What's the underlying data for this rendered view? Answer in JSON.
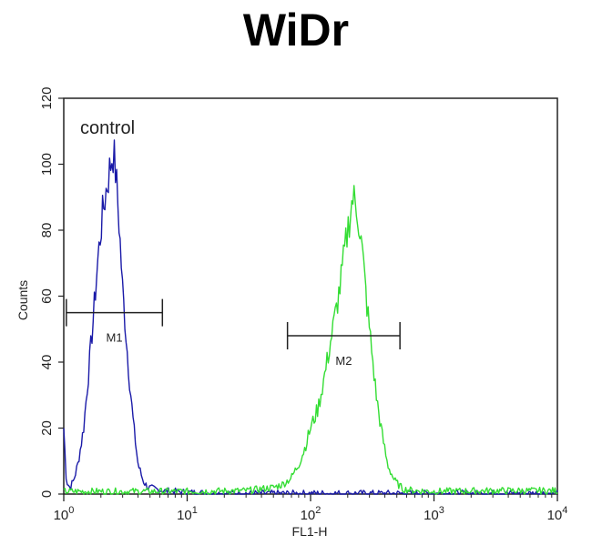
{
  "title": "WiDr",
  "colors": {
    "control": "#1a1aa8",
    "sample": "#33dd33",
    "axis": "#222222"
  },
  "chart_data": {
    "type": "line",
    "title": "WiDr",
    "xlabel": "FL1-H",
    "ylabel": "Counts",
    "xscale": "log",
    "xlim": [
      1,
      10000
    ],
    "ylim": [
      0,
      120
    ],
    "x_ticks": [
      {
        "value": 1,
        "base": "10",
        "exp": "0"
      },
      {
        "value": 10,
        "base": "10",
        "exp": "1"
      },
      {
        "value": 100,
        "base": "10",
        "exp": "2"
      },
      {
        "value": 1000,
        "base": "10",
        "exp": "3"
      },
      {
        "value": 10000,
        "base": "10",
        "exp": "4"
      }
    ],
    "y_ticks": [
      "0",
      "20",
      "40",
      "60",
      "80",
      "100",
      "120"
    ],
    "grid": false,
    "annotation": "control",
    "markers": [
      {
        "label": "M1",
        "x_range": [
          1.05,
          6.3
        ],
        "y": 55
      },
      {
        "label": "M2",
        "x_range": [
          65,
          530
        ],
        "y": 48
      }
    ],
    "series": [
      {
        "key": "control",
        "x": [
          1,
          1.05,
          1.12,
          1.2,
          1.3,
          1.45,
          1.6,
          1.75,
          1.9,
          2.05,
          2.2,
          2.35,
          2.5,
          2.6,
          2.7,
          2.85,
          3.0,
          3.2,
          3.4,
          3.7,
          4.0,
          4.4,
          4.8,
          5.5,
          6.5,
          8,
          10,
          15,
          30,
          100,
          1000,
          10000
        ],
        "y": [
          20,
          4,
          2,
          4,
          9,
          20,
          38,
          55,
          72,
          84,
          92,
          98,
          104,
          100,
          92,
          78,
          62,
          48,
          35,
          20,
          9,
          4,
          2,
          1.5,
          1,
          0.8,
          0.5,
          0.3,
          0.2,
          0.2,
          0.2,
          0.2
        ]
      },
      {
        "key": "sample",
        "x": [
          1,
          10,
          30,
          50,
          60,
          70,
          80,
          90,
          100,
          115,
          130,
          145,
          160,
          175,
          190,
          205,
          220,
          240,
          260,
          285,
          310,
          340,
          380,
          420,
          480,
          560,
          700,
          1000,
          3000,
          10000
        ],
        "y": [
          0.8,
          0.8,
          1,
          2,
          3,
          5,
          9,
          14,
          20,
          26,
          36,
          46,
          55,
          64,
          74,
          83,
          90,
          86,
          75,
          58,
          45,
          30,
          18,
          9,
          4,
          1.5,
          1,
          0.8,
          1,
          1
        ]
      }
    ]
  }
}
